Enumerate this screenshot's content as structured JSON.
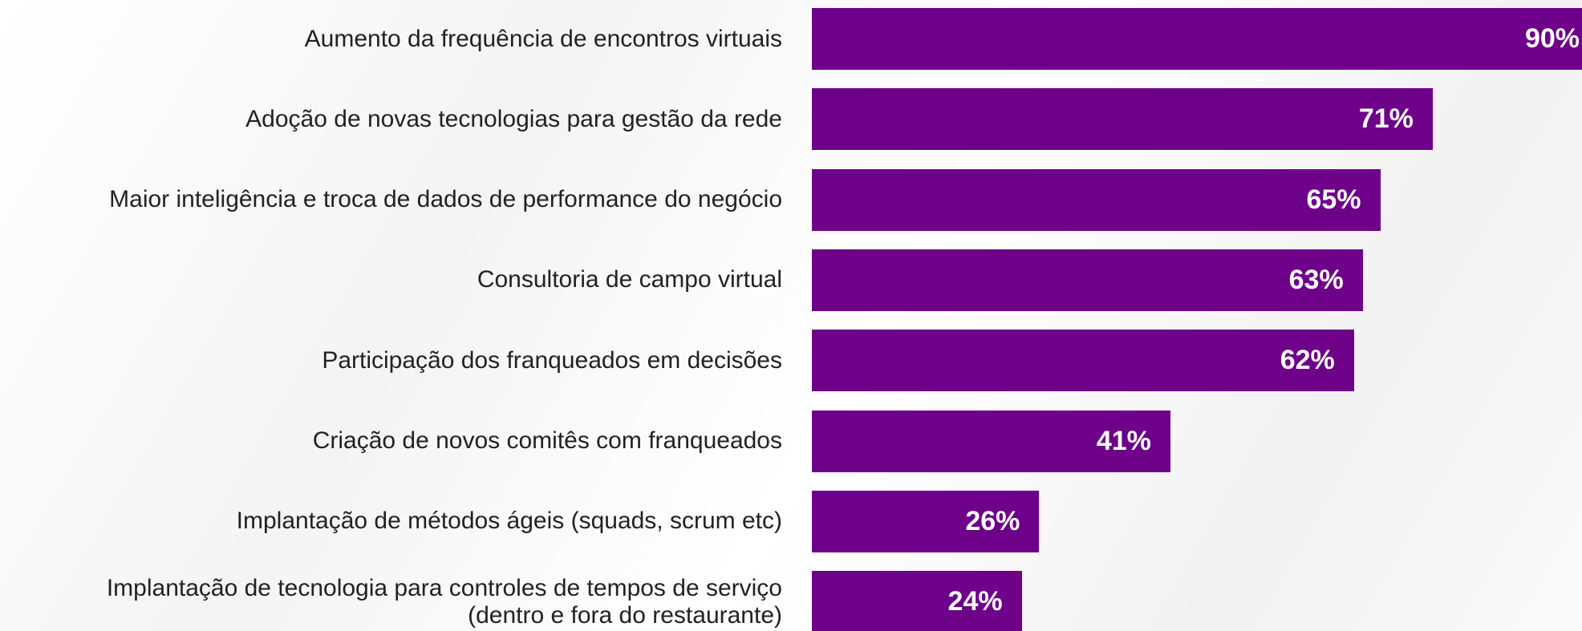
{
  "chart_data": {
    "type": "bar",
    "orientation": "horizontal",
    "color": "#6e008a",
    "categories": [
      "Aumento da frequência de encontros virtuais",
      "Adoção de novas tecnologias para gestão da rede",
      "Maior inteligência e troca de dados de performance do negócio",
      "Consultoria de campo virtual",
      "Participação dos franqueados em decisões",
      "Criação de novos comitês com franqueados",
      "Implantação de métodos ágeis (squads, scrum etc)",
      "Implantação de tecnologia para controles de tempos de serviço\n(dentro e fora do restaurante)"
    ],
    "values": [
      90,
      71,
      65,
      63,
      62,
      41,
      26,
      24
    ],
    "value_labels": [
      "90%",
      "71%",
      "65%",
      "63%",
      "62%",
      "41%",
      "26%",
      "24%"
    ]
  }
}
